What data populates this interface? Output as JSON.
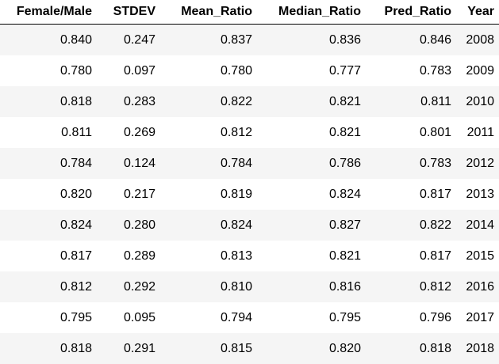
{
  "table": {
    "columns": [
      "Female/Male",
      "STDEV",
      "Mean_Ratio",
      "Median_Ratio",
      "Pred_Ratio",
      "Year"
    ],
    "rows": [
      [
        "0.840",
        "0.247",
        "0.837",
        "0.836",
        "0.846",
        "2008"
      ],
      [
        "0.780",
        "0.097",
        "0.780",
        "0.777",
        "0.783",
        "2009"
      ],
      [
        "0.818",
        "0.283",
        "0.822",
        "0.821",
        "0.811",
        "2010"
      ],
      [
        "0.811",
        "0.269",
        "0.812",
        "0.821",
        "0.801",
        "2011"
      ],
      [
        "0.784",
        "0.124",
        "0.784",
        "0.786",
        "0.783",
        "2012"
      ],
      [
        "0.820",
        "0.217",
        "0.819",
        "0.824",
        "0.817",
        "2013"
      ],
      [
        "0.824",
        "0.280",
        "0.824",
        "0.827",
        "0.822",
        "2014"
      ],
      [
        "0.817",
        "0.289",
        "0.813",
        "0.821",
        "0.817",
        "2015"
      ],
      [
        "0.812",
        "0.292",
        "0.810",
        "0.816",
        "0.812",
        "2016"
      ],
      [
        "0.795",
        "0.095",
        "0.794",
        "0.795",
        "0.796",
        "2017"
      ],
      [
        "0.818",
        "0.291",
        "0.815",
        "0.820",
        "0.818",
        "2018"
      ]
    ]
  },
  "colors": {
    "row_stripe": "#f5f5f5",
    "row_plain": "#ffffff",
    "header_rule": "#000000",
    "text": "#000000"
  }
}
